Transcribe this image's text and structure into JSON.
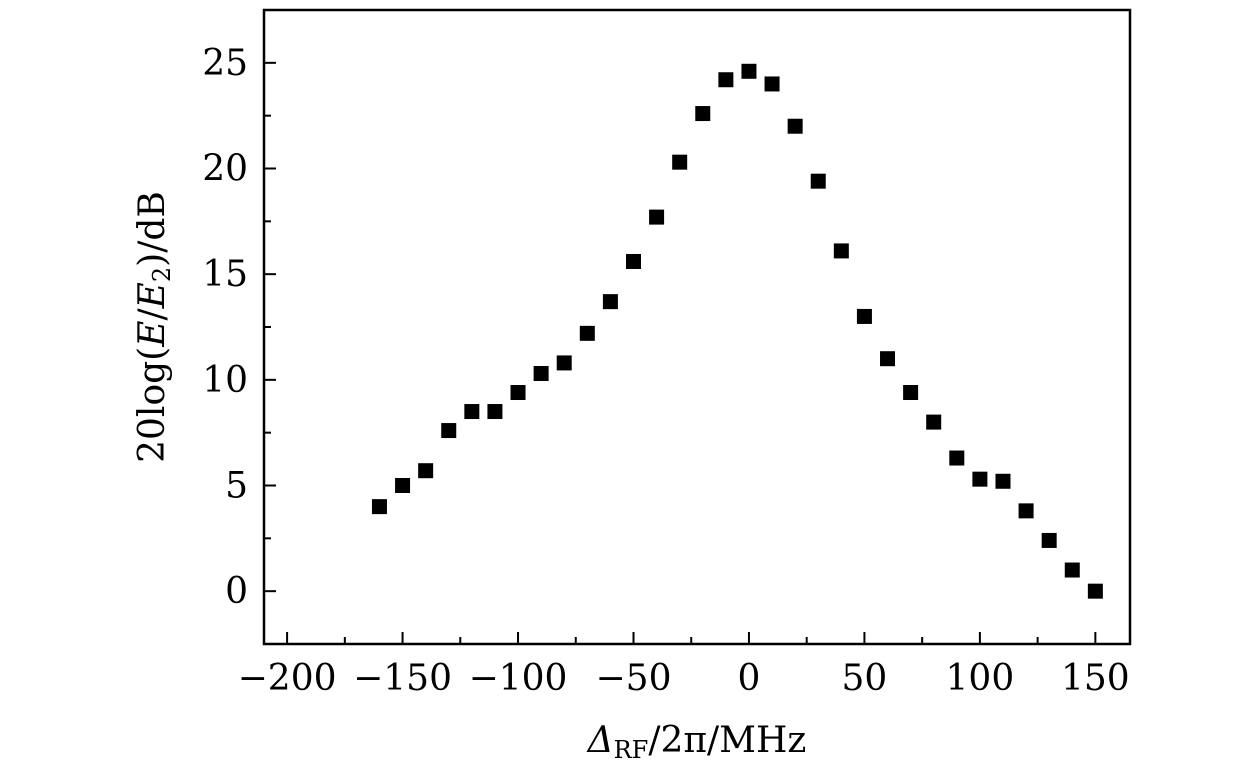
{
  "chart_data": {
    "type": "scatter",
    "title": "",
    "xlabel": {
      "symbol": "Δ",
      "subscript": "RF",
      "rest": "/2π/MHz"
    },
    "ylabel": {
      "prefix": "20log(",
      "var1": "E",
      "slash": "/",
      "var2": "E",
      "var2_sub": "2",
      "suffix": ")/dB"
    },
    "xlim": [
      -210,
      165
    ],
    "ylim": [
      -2.5,
      27.5
    ],
    "xticks": [
      -200,
      -150,
      -100,
      -50,
      0,
      50,
      100,
      150
    ],
    "xtick_labels": [
      "−200",
      "−150",
      "−100",
      "−50",
      "0",
      "50",
      "100",
      "150"
    ],
    "yticks": [
      0,
      5,
      10,
      15,
      20,
      25
    ],
    "ytick_labels": [
      "0",
      "5",
      "10",
      "15",
      "20",
      "25"
    ],
    "grid": false,
    "marker": "square",
    "marker_color": "#000000",
    "series": [
      {
        "x": [
          -160,
          -150,
          -140,
          -130,
          -120,
          -110,
          -100,
          -90,
          -80,
          -70,
          -60,
          -50,
          -40,
          -30,
          -20,
          -10,
          0,
          10,
          20,
          30,
          40,
          50,
          60,
          70,
          80,
          90,
          100,
          110,
          120,
          130,
          140,
          150
        ],
        "y": [
          4.0,
          5.0,
          5.7,
          7.6,
          8.5,
          8.5,
          9.4,
          10.3,
          10.8,
          12.2,
          13.7,
          15.6,
          17.7,
          20.3,
          22.6,
          24.2,
          24.6,
          24.0,
          22.0,
          19.4,
          16.1,
          13.0,
          11.0,
          9.4,
          8.0,
          6.3,
          5.3,
          5.2,
          3.8,
          2.4,
          1.0,
          0.0
        ]
      }
    ]
  }
}
